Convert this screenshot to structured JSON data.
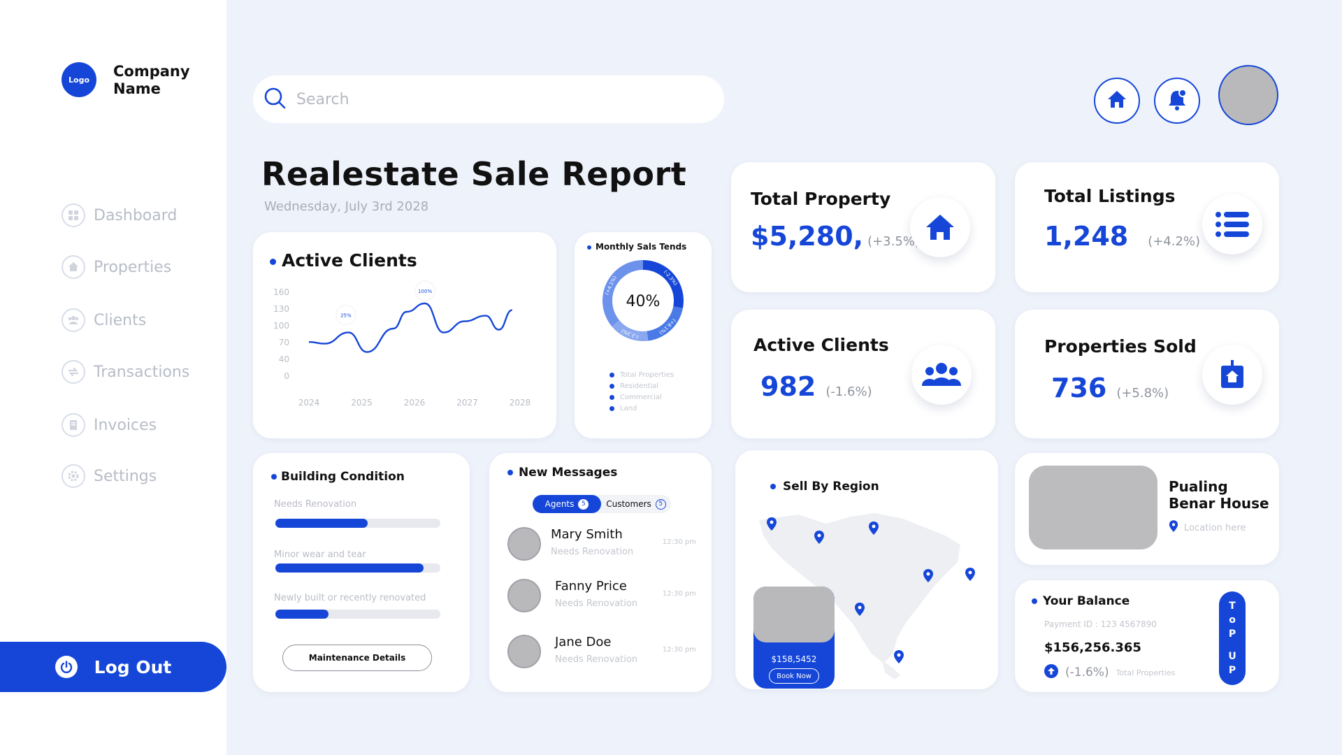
{
  "brand": {
    "logo_text": "Logo",
    "company_name": "Company Name"
  },
  "sidebar": {
    "items": [
      {
        "label": "Dashboard",
        "icon": "grid-icon"
      },
      {
        "label": "Properties",
        "icon": "home-icon"
      },
      {
        "label": "Clients",
        "icon": "users-icon"
      },
      {
        "label": "Transactions",
        "icon": "transfer-icon"
      },
      {
        "label": "Invoices",
        "icon": "invoice-icon"
      },
      {
        "label": "Settings",
        "icon": "gear-icon"
      }
    ],
    "logout_label": "Log Out"
  },
  "header": {
    "search_placeholder": "Search",
    "accent_color": "#1546d8"
  },
  "page": {
    "title": "Realestate Sale Report",
    "date": "Wednesday, July 3rd 2028"
  },
  "active_clients_chart": {
    "title": "Active Clients",
    "chart_data": {
      "type": "line",
      "title": "Active Clients",
      "x_ticks": [
        "2024",
        "2025",
        "2026",
        "2027",
        "2028"
      ],
      "y_ticks": [
        "0",
        "40",
        "70",
        "100",
        "130",
        "160"
      ],
      "y_tick_values": [
        0,
        40,
        70,
        100,
        130,
        160
      ],
      "annotations": [
        {
          "label": "25%",
          "x": 2024.7,
          "y": 97
        },
        {
          "label": "100%",
          "x": 2026.2,
          "y": 140
        }
      ],
      "series": [
        {
          "values": [
            {
              "x": 2024.0,
              "y": 71
            },
            {
              "x": 2024.3,
              "y": 68
            },
            {
              "x": 2024.75,
              "y": 88
            },
            {
              "x": 2025.1,
              "y": 53
            },
            {
              "x": 2025.6,
              "y": 95
            },
            {
              "x": 2025.85,
              "y": 125
            },
            {
              "x": 2026.2,
              "y": 140
            },
            {
              "x": 2026.55,
              "y": 88
            },
            {
              "x": 2026.95,
              "y": 108
            },
            {
              "x": 2027.35,
              "y": 118
            },
            {
              "x": 2027.6,
              "y": 93
            },
            {
              "x": 2027.85,
              "y": 128
            }
          ]
        }
      ]
    }
  },
  "monthly_sales": {
    "title": "Monthly Sals Tends",
    "center_label": "40%",
    "chart_data": {
      "type": "pie",
      "title": "Monthly Sals Tends",
      "categories": [
        "Total Properties",
        "Residential",
        "Commercial",
        "Land"
      ],
      "values": [
        28,
        20,
        16,
        36
      ],
      "segment_labels": [
        "(-2.3%)",
        "(+8.1%)",
        "(-2.3%)",
        "(+4.1%)"
      ],
      "colors": [
        "#1546d8",
        "#4a7ae6",
        "#8aa8f0",
        "#6d92ec"
      ]
    },
    "legend": [
      "Total Properties",
      "Residential",
      "Commercial",
      "Land"
    ]
  },
  "stats": {
    "total_property": {
      "title": "Total Property",
      "value": "$5,280,",
      "change": "(+3.5%)",
      "icon": "home-icon"
    },
    "total_listings": {
      "title": "Total Listings",
      "value": "1,248",
      "change": "(+4.2%)",
      "icon": "list-icon"
    },
    "active_clients": {
      "title": "Active Clients",
      "value": "982",
      "change": "(-1.6%)",
      "icon": "users-icon"
    },
    "properties_sold": {
      "title": "Properties Sold",
      "value": "736",
      "change": "(+5.8%)",
      "icon": "sold-sign-icon"
    }
  },
  "building_condition": {
    "title": "Building Condition",
    "items": [
      {
        "label": "Needs Renovation",
        "value": 0.56
      },
      {
        "label": "Minor wear and tear",
        "value": 0.9
      },
      {
        "label": "Newly built or recently renovated",
        "value": 0.32
      }
    ],
    "button_label": "Maintenance Details"
  },
  "messages": {
    "title": "New Messages",
    "tabs": [
      {
        "label": "Agents",
        "count": "5"
      },
      {
        "label": "Customers",
        "count": "5"
      }
    ],
    "items": [
      {
        "name": "Mary Smith",
        "subtitle": "Needs Renovation",
        "time": "12:30 pm"
      },
      {
        "name": "Fanny Price",
        "subtitle": "Needs Renovation",
        "time": "12:30 pm"
      },
      {
        "name": "Jane Doe",
        "subtitle": "Needs Renovation",
        "time": "12:30 pm"
      }
    ]
  },
  "region": {
    "title": "Sell By Region",
    "price": "$158,5452",
    "book_label": "Book Now"
  },
  "property": {
    "name": "Pualing Benar House",
    "location": "Location here"
  },
  "balance": {
    "title": "Your Balance",
    "payment_id": "Payment ID : 123 4567890",
    "amount": "$156,256.365",
    "change": "(-1.6%)",
    "change_label": "Total Properties",
    "topup_letters": [
      "T",
      "o",
      "P",
      "U",
      "P"
    ]
  }
}
